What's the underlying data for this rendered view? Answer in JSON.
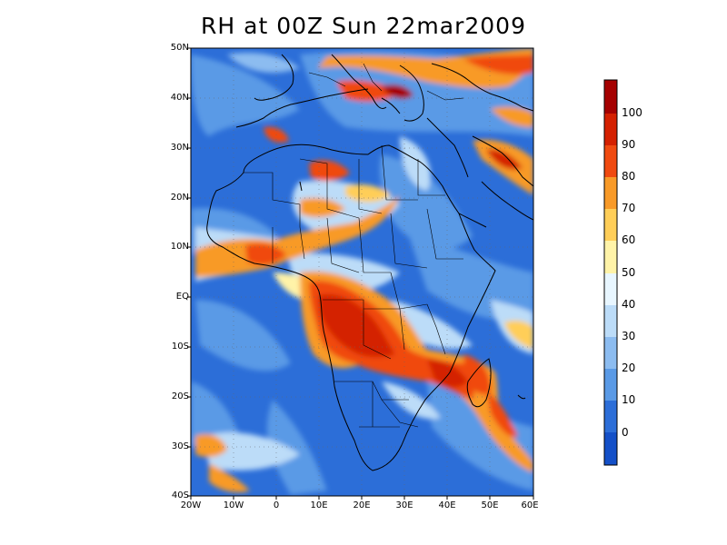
{
  "title": "RH at 00Z Sun 22mar2009",
  "map": {
    "lat_labels": [
      "50N",
      "40N",
      "30N",
      "20N",
      "10N",
      "EQ",
      "10S",
      "20S",
      "30S",
      "40S"
    ],
    "lon_labels": [
      "20W",
      "10W",
      "0",
      "10E",
      "20E",
      "30E",
      "40E",
      "50E",
      "60E"
    ]
  },
  "colorbar": {
    "labels": [
      "100",
      "90",
      "80",
      "70",
      "60",
      "50",
      "40",
      "30",
      "20",
      "10",
      "0"
    ],
    "colors": [
      "#a50000",
      "#d42000",
      "#f04a10",
      "#f89a28",
      "#ffce58",
      "#fff3a8",
      "#e8f6ff",
      "#bcdcf8",
      "#8cbcf0",
      "#5a9ae6",
      "#2c6ed8",
      "#1450c8"
    ]
  }
}
